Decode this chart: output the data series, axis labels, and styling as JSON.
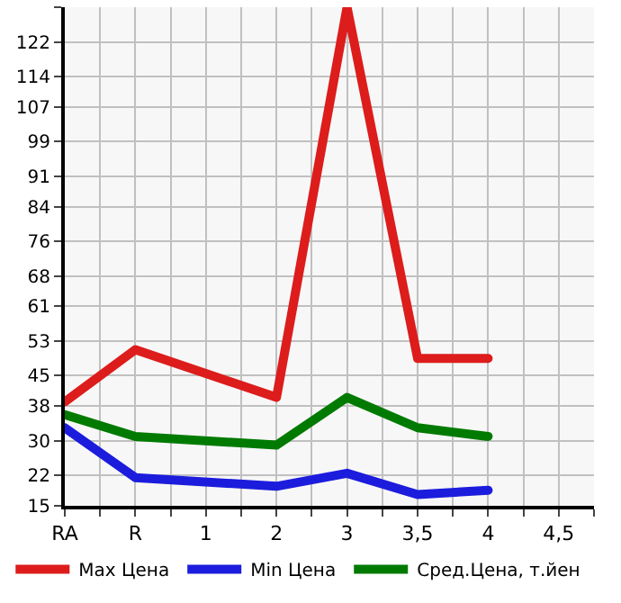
{
  "chart_data": {
    "type": "line",
    "categories": [
      "RA",
      "R",
      "1",
      "2",
      "3",
      "3,5",
      "4",
      "4,5"
    ],
    "series": [
      {
        "name": "Max Цена",
        "color": "#dd1c1c",
        "values": [
          39,
          51,
          null,
          40,
          130,
          49,
          49,
          null
        ]
      },
      {
        "name": "Min Цена",
        "color": "#1c1cdd",
        "values": [
          33,
          21.5,
          null,
          19.5,
          22.5,
          17.6,
          18.6,
          null
        ]
      },
      {
        "name": "Сред.Цена, т.йен",
        "color": "#007a00",
        "values": [
          36,
          31,
          null,
          29,
          40,
          33,
          31,
          null
        ]
      }
    ],
    "ylim": [
      15,
      130
    ],
    "yticks": [
      15,
      22,
      30,
      38,
      45,
      53,
      61,
      68,
      76,
      84,
      91,
      99,
      107,
      114,
      122,
      {
        "value": 130,
        "label": null
      }
    ],
    "grid": true,
    "legend": "bottom",
    "marker": "none",
    "line_style": "solid"
  }
}
